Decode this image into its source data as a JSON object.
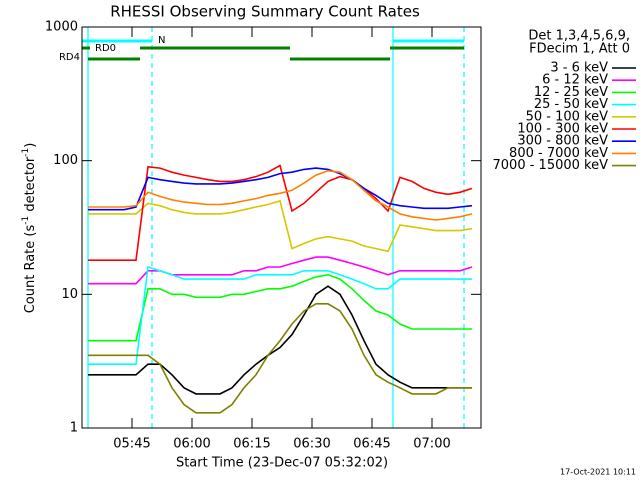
{
  "chart_data": {
    "type": "line",
    "title": "RHESSI Observing Summary Count Rates",
    "xlabel": "Start Time (23-Dec-07 05:32:02)",
    "ylabel": [
      "Count Rate (s",
      "-1",
      " detector",
      "-1",
      ")"
    ],
    "legend_header": [
      "Det 1,3,4,5,6,9,",
      "FDecim 1, Att 0"
    ],
    "stamp": "17-Oct-2021 10:11",
    "log_y": true,
    "xlim": [
      332.5,
      432.25
    ],
    "ylim": [
      1,
      1000
    ],
    "xticks": [
      {
        "value": 345,
        "label": "05:45"
      },
      {
        "value": 360,
        "label": "06:00"
      },
      {
        "value": 375,
        "label": "06:15"
      },
      {
        "value": 390,
        "label": "06:30"
      },
      {
        "value": 405,
        "label": "06:45"
      },
      {
        "value": 420,
        "label": "07:00"
      }
    ],
    "yticks": [
      1,
      10,
      100,
      1000
    ],
    "x": [
      334,
      337,
      340,
      343,
      346,
      349,
      352,
      355,
      358,
      361,
      364,
      367,
      370,
      373,
      376,
      379,
      382,
      385,
      388,
      391,
      394,
      397,
      400,
      403,
      406,
      409,
      412,
      415,
      418,
      421,
      424,
      427,
      430
    ],
    "series": [
      {
        "name": "3 - 6 keV",
        "color": "#000000",
        "values": [
          2.5,
          2.5,
          2.5,
          2.5,
          2.5,
          3,
          3,
          2.5,
          2,
          1.8,
          1.8,
          1.8,
          2,
          2.5,
          3,
          3.5,
          4,
          5,
          7,
          10,
          11.5,
          10,
          7,
          4.5,
          3,
          2.5,
          2.2,
          2,
          2,
          2,
          2,
          2,
          2
        ]
      },
      {
        "name": "6 - 12 keV",
        "color": "#ff00ff",
        "values": [
          12,
          12,
          12,
          12,
          12,
          15,
          15,
          14,
          14,
          14,
          14,
          14,
          14,
          15,
          15,
          16,
          16,
          17,
          18,
          19,
          19,
          18,
          17,
          16,
          15,
          14,
          15,
          15,
          15,
          15,
          15,
          15,
          16
        ]
      },
      {
        "name": "12 - 25 keV",
        "color": "#00ff00",
        "values": [
          4.5,
          4.5,
          4.5,
          4.5,
          4.5,
          11,
          11,
          10,
          10,
          9.5,
          9.5,
          9.5,
          10,
          10,
          10.5,
          11,
          11,
          11.5,
          12.5,
          13.5,
          14,
          13,
          11,
          9,
          7.5,
          7,
          6,
          5.5,
          5.5,
          5.5,
          5.5,
          5.5,
          5.5
        ]
      },
      {
        "name": "25 - 50 keV",
        "color": "#00ffff",
        "values": [
          3,
          3,
          3,
          3,
          3,
          16,
          15,
          14,
          13,
          13,
          13,
          13,
          13,
          13,
          14,
          14,
          14,
          14,
          15,
          15,
          15,
          14,
          13,
          12,
          11,
          11,
          13,
          13,
          13,
          13,
          13,
          13,
          13
        ]
      },
      {
        "name": "50 - 100 keV",
        "color": "#d4c800",
        "values": [
          40,
          40,
          40,
          40,
          40,
          48,
          46,
          43,
          41,
          40,
          40,
          40,
          41,
          43,
          45,
          47,
          50,
          22,
          24,
          26,
          27,
          26,
          25,
          23,
          22,
          21,
          33,
          32,
          31,
          30,
          30,
          30,
          31
        ]
      },
      {
        "name": "100 - 300 keV",
        "color": "#ff0000",
        "values": [
          18,
          18,
          18,
          18,
          18,
          90,
          88,
          82,
          78,
          75,
          72,
          70,
          70,
          72,
          76,
          82,
          92,
          42,
          48,
          58,
          70,
          76,
          72,
          62,
          52,
          42,
          75,
          70,
          62,
          58,
          56,
          58,
          62
        ]
      },
      {
        "name": "300 - 800 keV",
        "color": "#0000ff",
        "values": [
          43,
          43,
          43,
          43,
          45,
          75,
          72,
          70,
          68,
          67,
          67,
          67,
          68,
          70,
          72,
          75,
          80,
          82,
          86,
          88,
          86,
          80,
          72,
          62,
          55,
          48,
          46,
          45,
          44,
          44,
          44,
          45,
          46
        ]
      },
      {
        "name": "800 - 7000 keV",
        "color": "#ff8000",
        "values": [
          45,
          45,
          45,
          45,
          46,
          58,
          54,
          51,
          49,
          48,
          47,
          47,
          48,
          50,
          52,
          55,
          57,
          60,
          68,
          78,
          84,
          82,
          72,
          60,
          50,
          45,
          40,
          38,
          37,
          36,
          37,
          38,
          40
        ]
      },
      {
        "name": "7000 - 15000 keV",
        "color": "#808000",
        "values": [
          3.5,
          3.5,
          3.5,
          3.5,
          3.5,
          3.5,
          3,
          2,
          1.5,
          1.3,
          1.3,
          1.3,
          1.5,
          2,
          2.5,
          3.5,
          4.5,
          6,
          7.5,
          8.5,
          8.5,
          7.5,
          5.5,
          3.5,
          2.5,
          2.2,
          2,
          1.8,
          1.8,
          1.8,
          2,
          2,
          2
        ]
      }
    ],
    "flags": [
      {
        "label": "N",
        "color": "#00ffff",
        "intervals": [
          [
            332.5,
            350
          ],
          [
            410.25,
            428
          ]
        ]
      },
      {
        "label": "RD0",
        "color": "#008000",
        "intervals": [
          [
            332.5,
            334.5
          ],
          [
            347,
            384.5
          ],
          [
            409.5,
            428
          ]
        ]
      },
      {
        "label": "RD4",
        "color": "#008000",
        "intervals": [
          [
            334,
            347
          ],
          [
            384.5,
            409.5
          ]
        ]
      }
    ],
    "vlines": [
      {
        "color": "#00ffff",
        "dashed": false,
        "x": [
          334,
          410.25
        ]
      },
      {
        "color": "#00ffff",
        "dashed": true,
        "x": [
          350,
          428
        ]
      }
    ]
  }
}
